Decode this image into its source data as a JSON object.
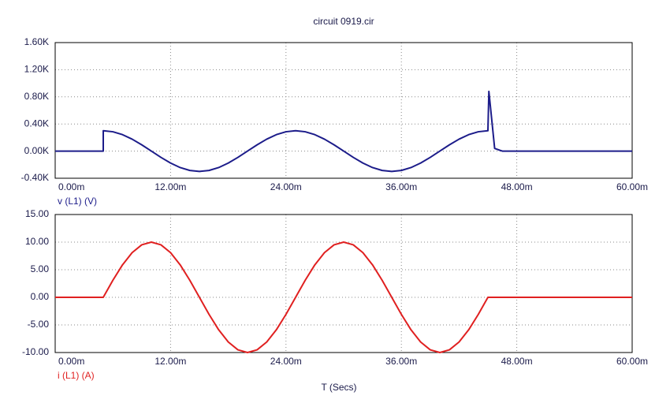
{
  "chart_data": [
    {
      "type": "line",
      "title": "circuit 0919.cir",
      "x": [
        0,
        0.005,
        0.005,
        0.006,
        0.007,
        0.008,
        0.009,
        0.01,
        0.011,
        0.012,
        0.013,
        0.014,
        0.015,
        0.016,
        0.017,
        0.018,
        0.019,
        0.02,
        0.021,
        0.022,
        0.023,
        0.024,
        0.025,
        0.026,
        0.027,
        0.028,
        0.029,
        0.03,
        0.031,
        0.032,
        0.033,
        0.034,
        0.035,
        0.036,
        0.037,
        0.038,
        0.039,
        0.04,
        0.041,
        0.042,
        0.043,
        0.044,
        0.045,
        0.0451,
        0.0457,
        0.0465,
        0.06
      ],
      "series": [
        {
          "name": "v (L1) (V)",
          "color": "#1c1c8a",
          "values": [
            0,
            0,
            300,
            285.3,
            242.7,
            176.3,
            92.7,
            0,
            -92.7,
            -176.3,
            -242.7,
            -285.3,
            -300,
            -285.3,
            -242.7,
            -176.3,
            -92.7,
            0,
            92.7,
            176.3,
            242.7,
            285.3,
            300,
            285.3,
            242.7,
            176.3,
            92.7,
            0,
            -92.7,
            -176.3,
            -242.7,
            -285.3,
            -300,
            -285.3,
            -242.7,
            -176.3,
            -92.7,
            0,
            92.7,
            176.3,
            242.7,
            285.3,
            300,
            880,
            40,
            0,
            0
          ]
        }
      ],
      "xlim": [
        0,
        0.06
      ],
      "xticks": [
        {
          "value": 0,
          "label": "0.00m"
        },
        {
          "value": 0.012,
          "label": "12.00m"
        },
        {
          "value": 0.024,
          "label": "24.00m"
        },
        {
          "value": 0.036,
          "label": "36.00m"
        },
        {
          "value": 0.048,
          "label": "48.00m"
        },
        {
          "value": 0.06,
          "label": "60.00m"
        }
      ],
      "ylim": [
        -400,
        1600
      ],
      "yticks": [
        {
          "value": -400,
          "label": "-0.40K"
        },
        {
          "value": 0,
          "label": "0.00K"
        },
        {
          "value": 400,
          "label": "0.40K"
        },
        {
          "value": 800,
          "label": "0.80K"
        },
        {
          "value": 1200,
          "label": "1.20K"
        },
        {
          "value": 1600,
          "label": "1.60K"
        }
      ],
      "grid": true
    },
    {
      "type": "line",
      "xlabel": "T  (Secs)",
      "x": [
        0,
        0.005,
        0.006,
        0.007,
        0.008,
        0.009,
        0.01,
        0.011,
        0.012,
        0.013,
        0.014,
        0.015,
        0.016,
        0.017,
        0.018,
        0.019,
        0.02,
        0.021,
        0.022,
        0.023,
        0.024,
        0.025,
        0.026,
        0.027,
        0.028,
        0.029,
        0.03,
        0.031,
        0.032,
        0.033,
        0.034,
        0.035,
        0.036,
        0.037,
        0.038,
        0.039,
        0.04,
        0.041,
        0.042,
        0.043,
        0.044,
        0.045,
        0.06
      ],
      "series": [
        {
          "name": "i (L1) (A)",
          "color": "#e02020",
          "values": [
            0,
            0,
            3.09,
            5.88,
            8.09,
            9.51,
            10,
            9.51,
            8.09,
            5.88,
            3.09,
            0,
            -3.09,
            -5.88,
            -8.09,
            -9.51,
            -10,
            -9.51,
            -8.09,
            -5.88,
            -3.09,
            0,
            3.09,
            5.88,
            8.09,
            9.51,
            10,
            9.51,
            8.09,
            5.88,
            3.09,
            0,
            -3.09,
            -5.88,
            -8.09,
            -9.51,
            -10,
            -9.51,
            -8.09,
            -5.88,
            -3.09,
            0,
            0
          ]
        }
      ],
      "xlim": [
        0,
        0.06
      ],
      "xticks": [
        {
          "value": 0,
          "label": "0.00m"
        },
        {
          "value": 0.012,
          "label": "12.00m"
        },
        {
          "value": 0.024,
          "label": "24.00m"
        },
        {
          "value": 0.036,
          "label": "36.00m"
        },
        {
          "value": 0.048,
          "label": "48.00m"
        },
        {
          "value": 0.06,
          "label": "60.00m"
        }
      ],
      "ylim": [
        -10,
        15
      ],
      "yticks": [
        {
          "value": -10,
          "label": "-10.00"
        },
        {
          "value": -5,
          "label": "-5.00"
        },
        {
          "value": 0,
          "label": "0.00"
        },
        {
          "value": 5,
          "label": "5.00"
        },
        {
          "value": 10,
          "label": "10.00"
        },
        {
          "value": 15,
          "label": "15.00"
        }
      ],
      "grid": true
    }
  ]
}
